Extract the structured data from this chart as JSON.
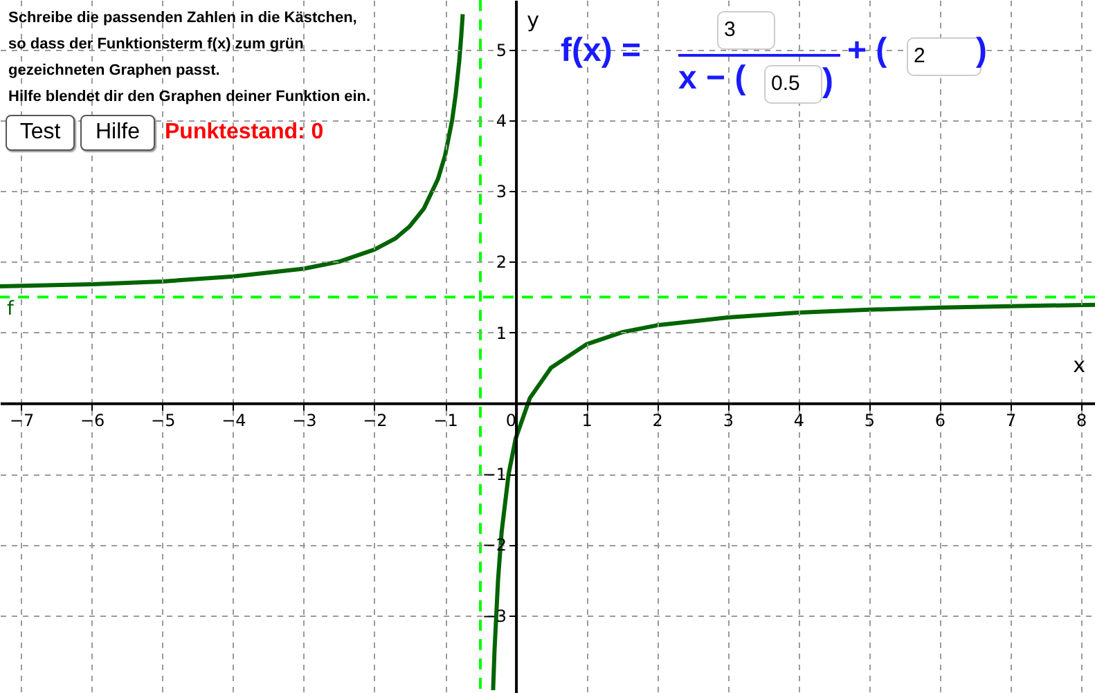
{
  "chart_data": {
    "type": "line",
    "xlabel": "x",
    "ylabel": "y",
    "x": [
      -7.3,
      -6,
      -5,
      -4,
      -3,
      -2.5,
      -2,
      -1.7,
      -1.5,
      -1.3,
      -1.1,
      -1,
      -0.9,
      -0.85,
      -0.8,
      -0.77,
      -0.75,
      -0.5,
      -0.32,
      -0.3,
      -0.25,
      -0.2,
      -0.1,
      0,
      0.2,
      0.5,
      1,
      1.5,
      2,
      3,
      4,
      5,
      6,
      7,
      8.2
    ],
    "series": [
      {
        "color": "#006400",
        "values": [
          1.65,
          1.68,
          1.72,
          1.79,
          1.9,
          2.0,
          2.17,
          2.33,
          2.5,
          2.75,
          3.17,
          3.5,
          4.0,
          4.36,
          4.83,
          5.2,
          5.5,
          null,
          -4.06,
          -3.5,
          -2.5,
          -1.83,
          -1.0,
          -0.5,
          0.07,
          0.5,
          0.83,
          1.0,
          1.1,
          1.21,
          1.28,
          1.32,
          1.35,
          1.37,
          1.39
        ]
      }
    ],
    "xlim": [
      -7.3,
      8.2
    ],
    "ylim": [
      -4.1,
      5.7
    ],
    "xticks": [
      {
        "value": -7,
        "label": "−7"
      },
      {
        "value": -6,
        "label": "−6"
      },
      {
        "value": -5,
        "label": "−5"
      },
      {
        "value": -4,
        "label": "−4"
      },
      {
        "value": -3,
        "label": "−3"
      },
      {
        "value": -2,
        "label": "−2"
      },
      {
        "value": -1,
        "label": "−1"
      },
      0,
      1,
      2,
      3,
      4,
      5,
      6,
      7,
      8
    ],
    "yticks": [
      {
        "value": -3,
        "label": "−3"
      },
      {
        "value": -2,
        "label": "−2"
      },
      {
        "value": -1,
        "label": "−1"
      },
      1,
      2,
      3,
      4,
      5
    ],
    "grid": true,
    "marker": "none",
    "line_style": "solid",
    "ref_lines": [
      {
        "axis": "x",
        "value": -0.5,
        "color": "#00ff00",
        "line_style": "dashed"
      },
      {
        "axis": "y",
        "value": 1.5,
        "label": "f",
        "color": "#00ff00",
        "line_style": "dashed"
      }
    ],
    "annotations": [
      "Schreibe die passenden Zahlen in die Kästchen,",
      "so dass der Funktionsterm f(x) zum grün",
      "gezeichneten Graphen passt.",
      "Hilfe blendet dir den Graphen deiner Funktion ein.",
      "Test",
      "Hilfe",
      "Punktestand: 0",
      "f(x) =",
      "3",
      "x − (",
      "0.5",
      ")",
      "+ (",
      "2",
      ")"
    ]
  }
}
